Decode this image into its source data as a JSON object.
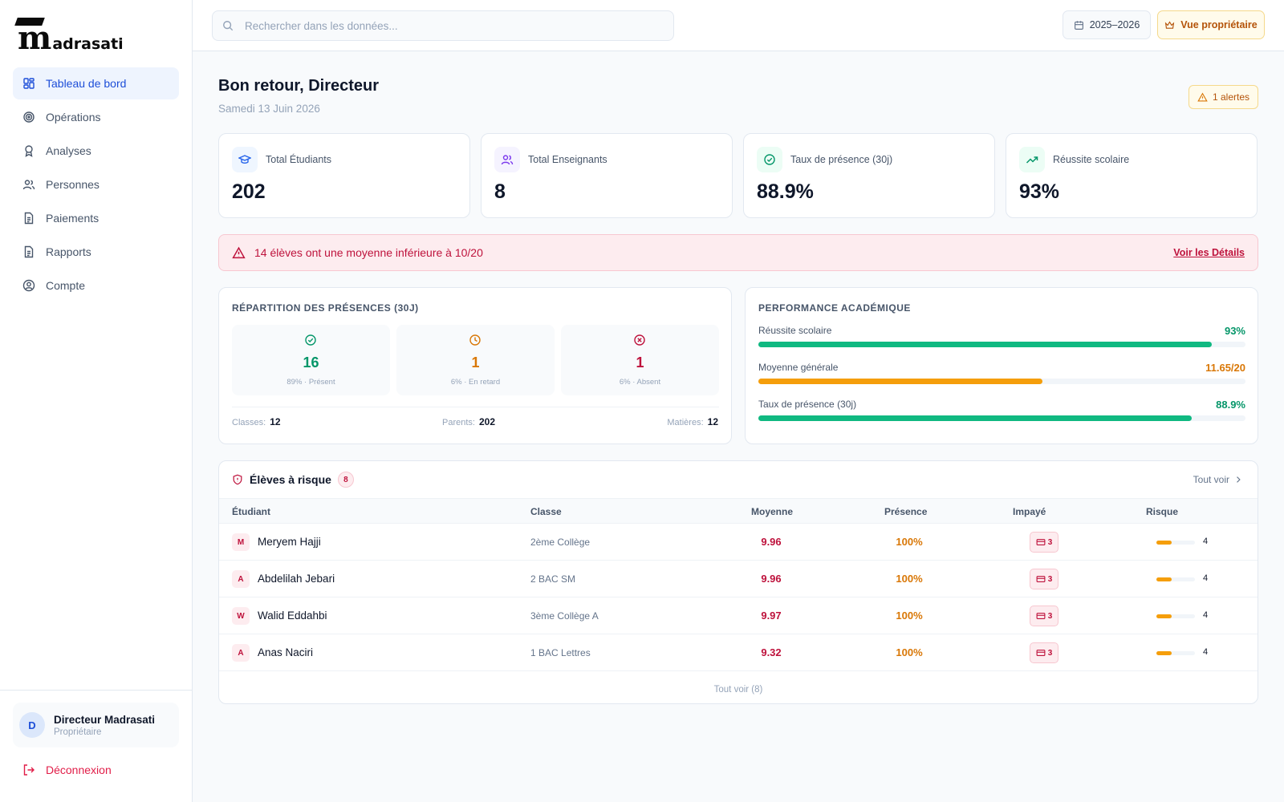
{
  "brand": {
    "logo_mark": "m",
    "logo_text": "adrasati"
  },
  "sidebar": {
    "items": [
      {
        "label": "Tableau de bord",
        "icon": "dashboard-icon",
        "active": true
      },
      {
        "label": "Opérations",
        "icon": "target-icon"
      },
      {
        "label": "Analyses",
        "icon": "award-icon"
      },
      {
        "label": "Personnes",
        "icon": "users-icon"
      },
      {
        "label": "Paiements",
        "icon": "file-icon"
      },
      {
        "label": "Rapports",
        "icon": "file-icon"
      },
      {
        "label": "Compte",
        "icon": "user-circle-icon"
      }
    ],
    "user": {
      "initial": "D",
      "name": "Directeur Madrasati",
      "role": "Propriétaire"
    },
    "logout_label": "Déconnexion"
  },
  "topbar": {
    "search_placeholder": "Rechercher dans les données...",
    "year_label": "2025–2026",
    "owner_label": "Vue propriétaire"
  },
  "header": {
    "greeting": "Bon retour, Directeur",
    "date": "Samedi 13 Juin 2026",
    "alerts_label": "1 alertes"
  },
  "stats": [
    {
      "label": "Total Étudiants",
      "value": "202",
      "icon": "graduation-cap-icon",
      "color": "#2563eb",
      "bg": "#eff6ff"
    },
    {
      "label": "Total Enseignants",
      "value": "8",
      "icon": "users-icon",
      "color": "#7c3aed",
      "bg": "#f5f3ff"
    },
    {
      "label": "Taux de présence (30j)",
      "value": "88.9%",
      "icon": "check-circle-icon",
      "color": "#059669",
      "bg": "#ecfdf5"
    },
    {
      "label": "Réussite scolaire",
      "value": "93%",
      "icon": "trending-up-icon",
      "color": "#059669",
      "bg": "#ecfdf5"
    }
  ],
  "warning": {
    "text": "14 élèves ont une moyenne inférieure à 10/20",
    "link": "Voir les Détails"
  },
  "attendance": {
    "title": "RÉPARTITION DES PRÉSENCES (30J)",
    "boxes": [
      {
        "value": "16",
        "sub": "89% · Présent",
        "icon": "check-circle-icon",
        "color": "#059669"
      },
      {
        "value": "1",
        "sub": "6% · En retard",
        "icon": "clock-icon",
        "color": "#d97706"
      },
      {
        "value": "1",
        "sub": "6% · Absent",
        "icon": "x-circle-icon",
        "color": "#be123c"
      }
    ],
    "footer": [
      {
        "label": "Classes:",
        "value": "12"
      },
      {
        "label": "Parents:",
        "value": "202"
      },
      {
        "label": "Matières:",
        "value": "12"
      }
    ]
  },
  "performance": {
    "title": "PERFORMANCE ACADÉMIQUE",
    "rows": [
      {
        "label": "Réussite scolaire",
        "value": "93%",
        "fraction": 0.93,
        "color": "#10b981"
      },
      {
        "label": "Moyenne générale",
        "value": "11.65/20",
        "fraction": 0.5825,
        "color": "#f59e0b"
      },
      {
        "label": "Taux de présence (30j)",
        "value": "88.9%",
        "fraction": 0.889,
        "color": "#10b981"
      }
    ]
  },
  "risk": {
    "title": "Élèves à risque",
    "count": "8",
    "see_all": "Tout voir",
    "columns": [
      "Étudiant",
      "Classe",
      "Moyenne",
      "Présence",
      "Impayé",
      "Risque"
    ],
    "rows": [
      {
        "initial": "M",
        "name": "Meryem Hajji",
        "class": "2ème Collège",
        "avg": "9.96",
        "presence": "100%",
        "unpaid": "3",
        "risk": "4",
        "risk_fraction": 0.4
      },
      {
        "initial": "A",
        "name": "Abdelilah Jebari",
        "class": "2 BAC SM",
        "avg": "9.96",
        "presence": "100%",
        "unpaid": "3",
        "risk": "4",
        "risk_fraction": 0.4
      },
      {
        "initial": "W",
        "name": "Walid Eddahbi",
        "class": "3ème Collège A",
        "avg": "9.97",
        "presence": "100%",
        "unpaid": "3",
        "risk": "4",
        "risk_fraction": 0.4
      },
      {
        "initial": "A",
        "name": "Anas Naciri",
        "class": "1 BAC Lettres",
        "avg": "9.32",
        "presence": "100%",
        "unpaid": "3",
        "risk": "4",
        "risk_fraction": 0.4
      }
    ],
    "footer_link": "Tout voir (8)"
  }
}
